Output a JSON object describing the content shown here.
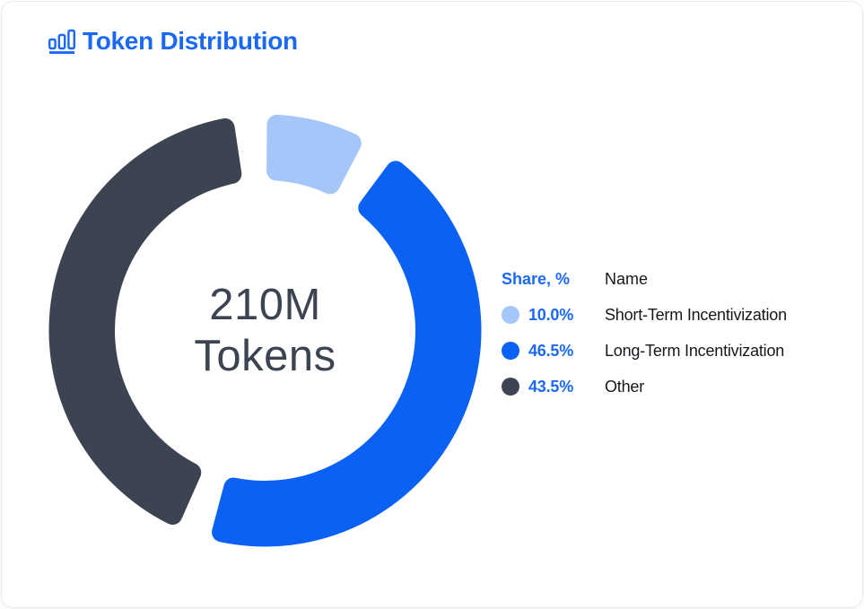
{
  "card": {
    "title": "Token Distribution"
  },
  "donut": {
    "center_line1": "210M",
    "center_line2": "Tokens"
  },
  "legend": {
    "share_header": "Share, %",
    "name_header": "Name"
  },
  "chart_data": {
    "type": "pie",
    "subtype": "donut",
    "title": "Token Distribution",
    "center_label": "210M Tokens",
    "unit": "%",
    "series": [
      {
        "name": "Short-Term Incentivization",
        "value": 10.0,
        "label": "10.0%",
        "color": "#A5C6F8"
      },
      {
        "name": "Long-Term Incentivization",
        "value": 46.5,
        "label": "46.5%",
        "color": "#0B61F4"
      },
      {
        "name": "Other",
        "value": 43.5,
        "label": "43.5%",
        "color": "#3C4452"
      }
    ],
    "layout": {
      "legend_position": "right",
      "rotation_deg": -4,
      "gap_deg": 9,
      "outer_radius": 241,
      "inner_radius": 167.5,
      "corner_radius": 11
    }
  },
  "colors": {
    "accent": "#1B68F3",
    "ink": "#14171C",
    "slate": "#3C4452",
    "card_border": "#E8EAEE"
  }
}
